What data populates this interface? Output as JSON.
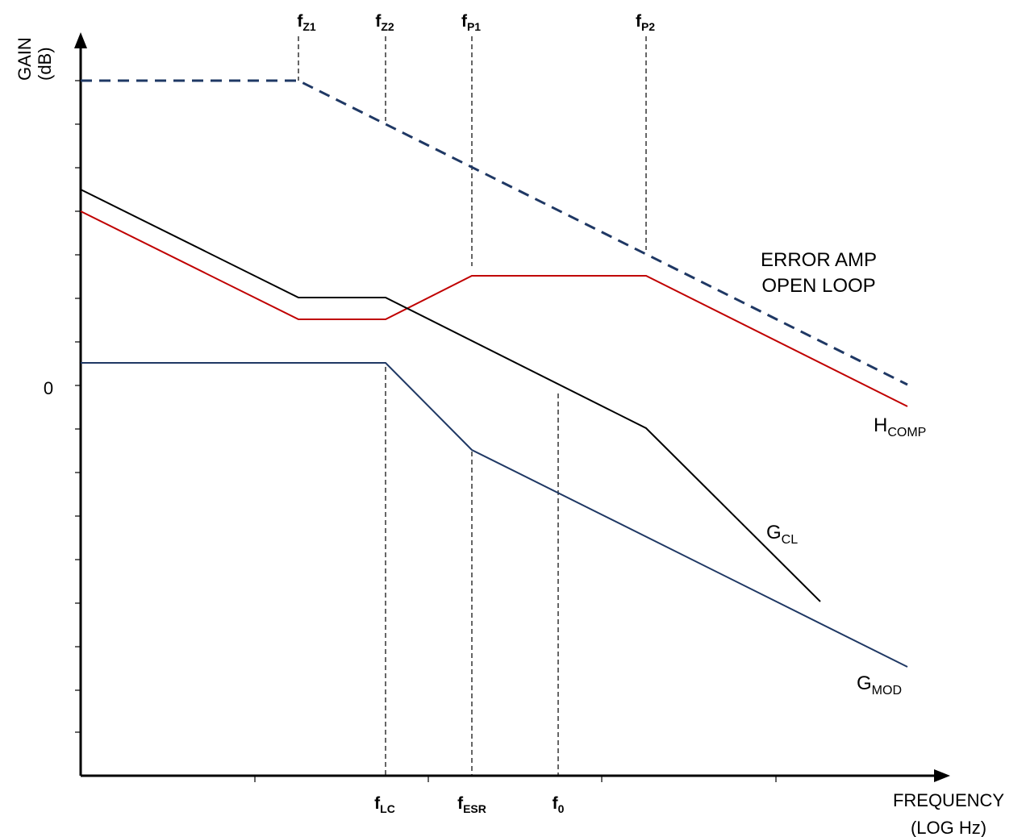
{
  "axes": {
    "y_label_line1": "GAIN",
    "y_label_line2": "(dB)",
    "x_label_line1": "FREQUENCY",
    "x_label_line2": "(LOG Hz)",
    "zero_label": "0"
  },
  "markers": {
    "fz1": {
      "main": "f",
      "sub": "Z1"
    },
    "fz2": {
      "main": "f",
      "sub": "Z2"
    },
    "fp1": {
      "main": "f",
      "sub": "P1"
    },
    "fp2": {
      "main": "f",
      "sub": "P2"
    },
    "flc": {
      "main": "f",
      "sub": "LC"
    },
    "fesr": {
      "main": "f",
      "sub": "ESR"
    },
    "f0": {
      "main": "f",
      "sub": "0"
    }
  },
  "curves": {
    "error_amp": {
      "line1": "ERROR AMP",
      "line2": "OPEN LOOP"
    },
    "hcomp": {
      "main": "H",
      "sub": "COMP"
    },
    "gcl": {
      "main": "G",
      "sub": "CL"
    },
    "gmod": {
      "main": "G",
      "sub": "MOD"
    }
  },
  "colors": {
    "axis": "#000000",
    "error_amp": "#1f3864",
    "hcomp": "#c00000",
    "gcl": "#000000",
    "gmod": "#1f3864"
  }
}
